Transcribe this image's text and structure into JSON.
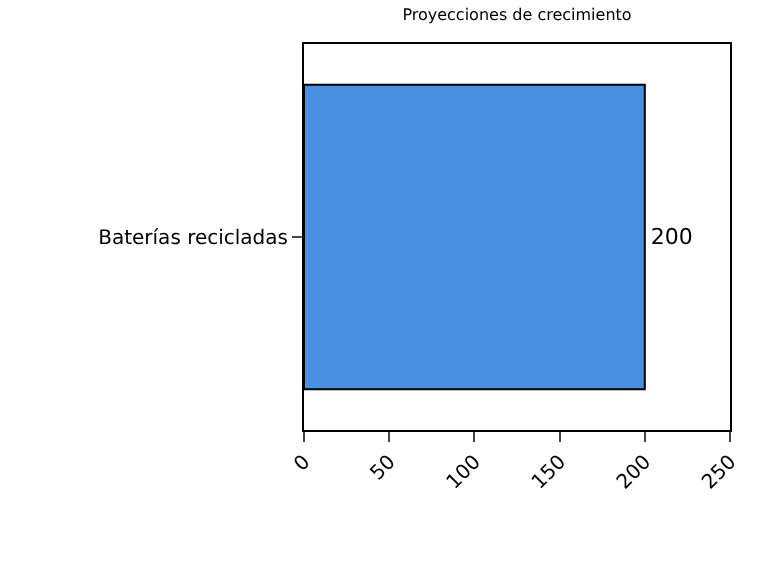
{
  "chart_data": {
    "type": "bar",
    "title": "Proyecciones de crecimiento",
    "orientation": "horizontal",
    "categories": [
      "Baterías recicladas"
    ],
    "values": [
      200
    ],
    "color": "#4a90e2",
    "xlim": [
      0,
      250
    ],
    "xticks": [
      0,
      50,
      100,
      150,
      200,
      250
    ],
    "data_labels": true
  }
}
